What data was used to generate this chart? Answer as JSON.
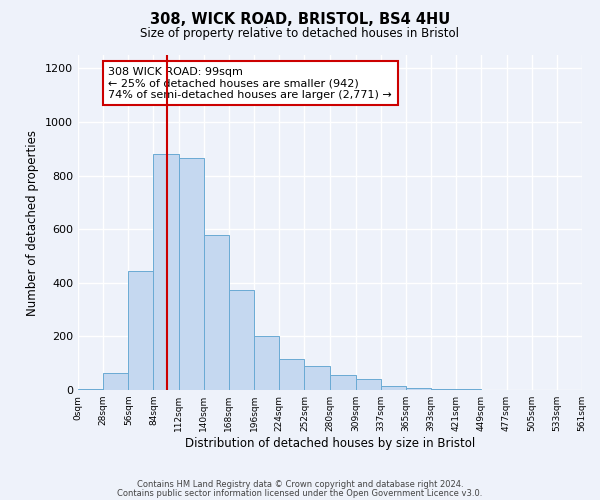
{
  "title": "308, WICK ROAD, BRISTOL, BS4 4HU",
  "subtitle": "Size of property relative to detached houses in Bristol",
  "xlabel": "Distribution of detached houses by size in Bristol",
  "ylabel": "Number of detached properties",
  "bar_color": "#c5d8f0",
  "bar_edge_color": "#6aaad4",
  "background_color": "#eef2fa",
  "grid_color": "#ffffff",
  "red_line_x": 99,
  "annotation_text": "308 WICK ROAD: 99sqm\n← 25% of detached houses are smaller (942)\n74% of semi-detached houses are larger (2,771) →",
  "annotation_box_color": "#ffffff",
  "annotation_box_edge": "#cc0000",
  "bin_edges": [
    0,
    28,
    56,
    84,
    112,
    140,
    168,
    196,
    224,
    252,
    280,
    309,
    337,
    365,
    393,
    421,
    449,
    477,
    505,
    533,
    561
  ],
  "bin_heights": [
    5,
    65,
    445,
    880,
    865,
    580,
    375,
    200,
    115,
    90,
    55,
    42,
    15,
    8,
    3,
    2,
    1,
    1,
    0,
    0
  ],
  "ylim": [
    0,
    1250
  ],
  "yticks": [
    0,
    200,
    400,
    600,
    800,
    1000,
    1200
  ],
  "footnote1": "Contains HM Land Registry data © Crown copyright and database right 2024.",
  "footnote2": "Contains public sector information licensed under the Open Government Licence v3.0."
}
